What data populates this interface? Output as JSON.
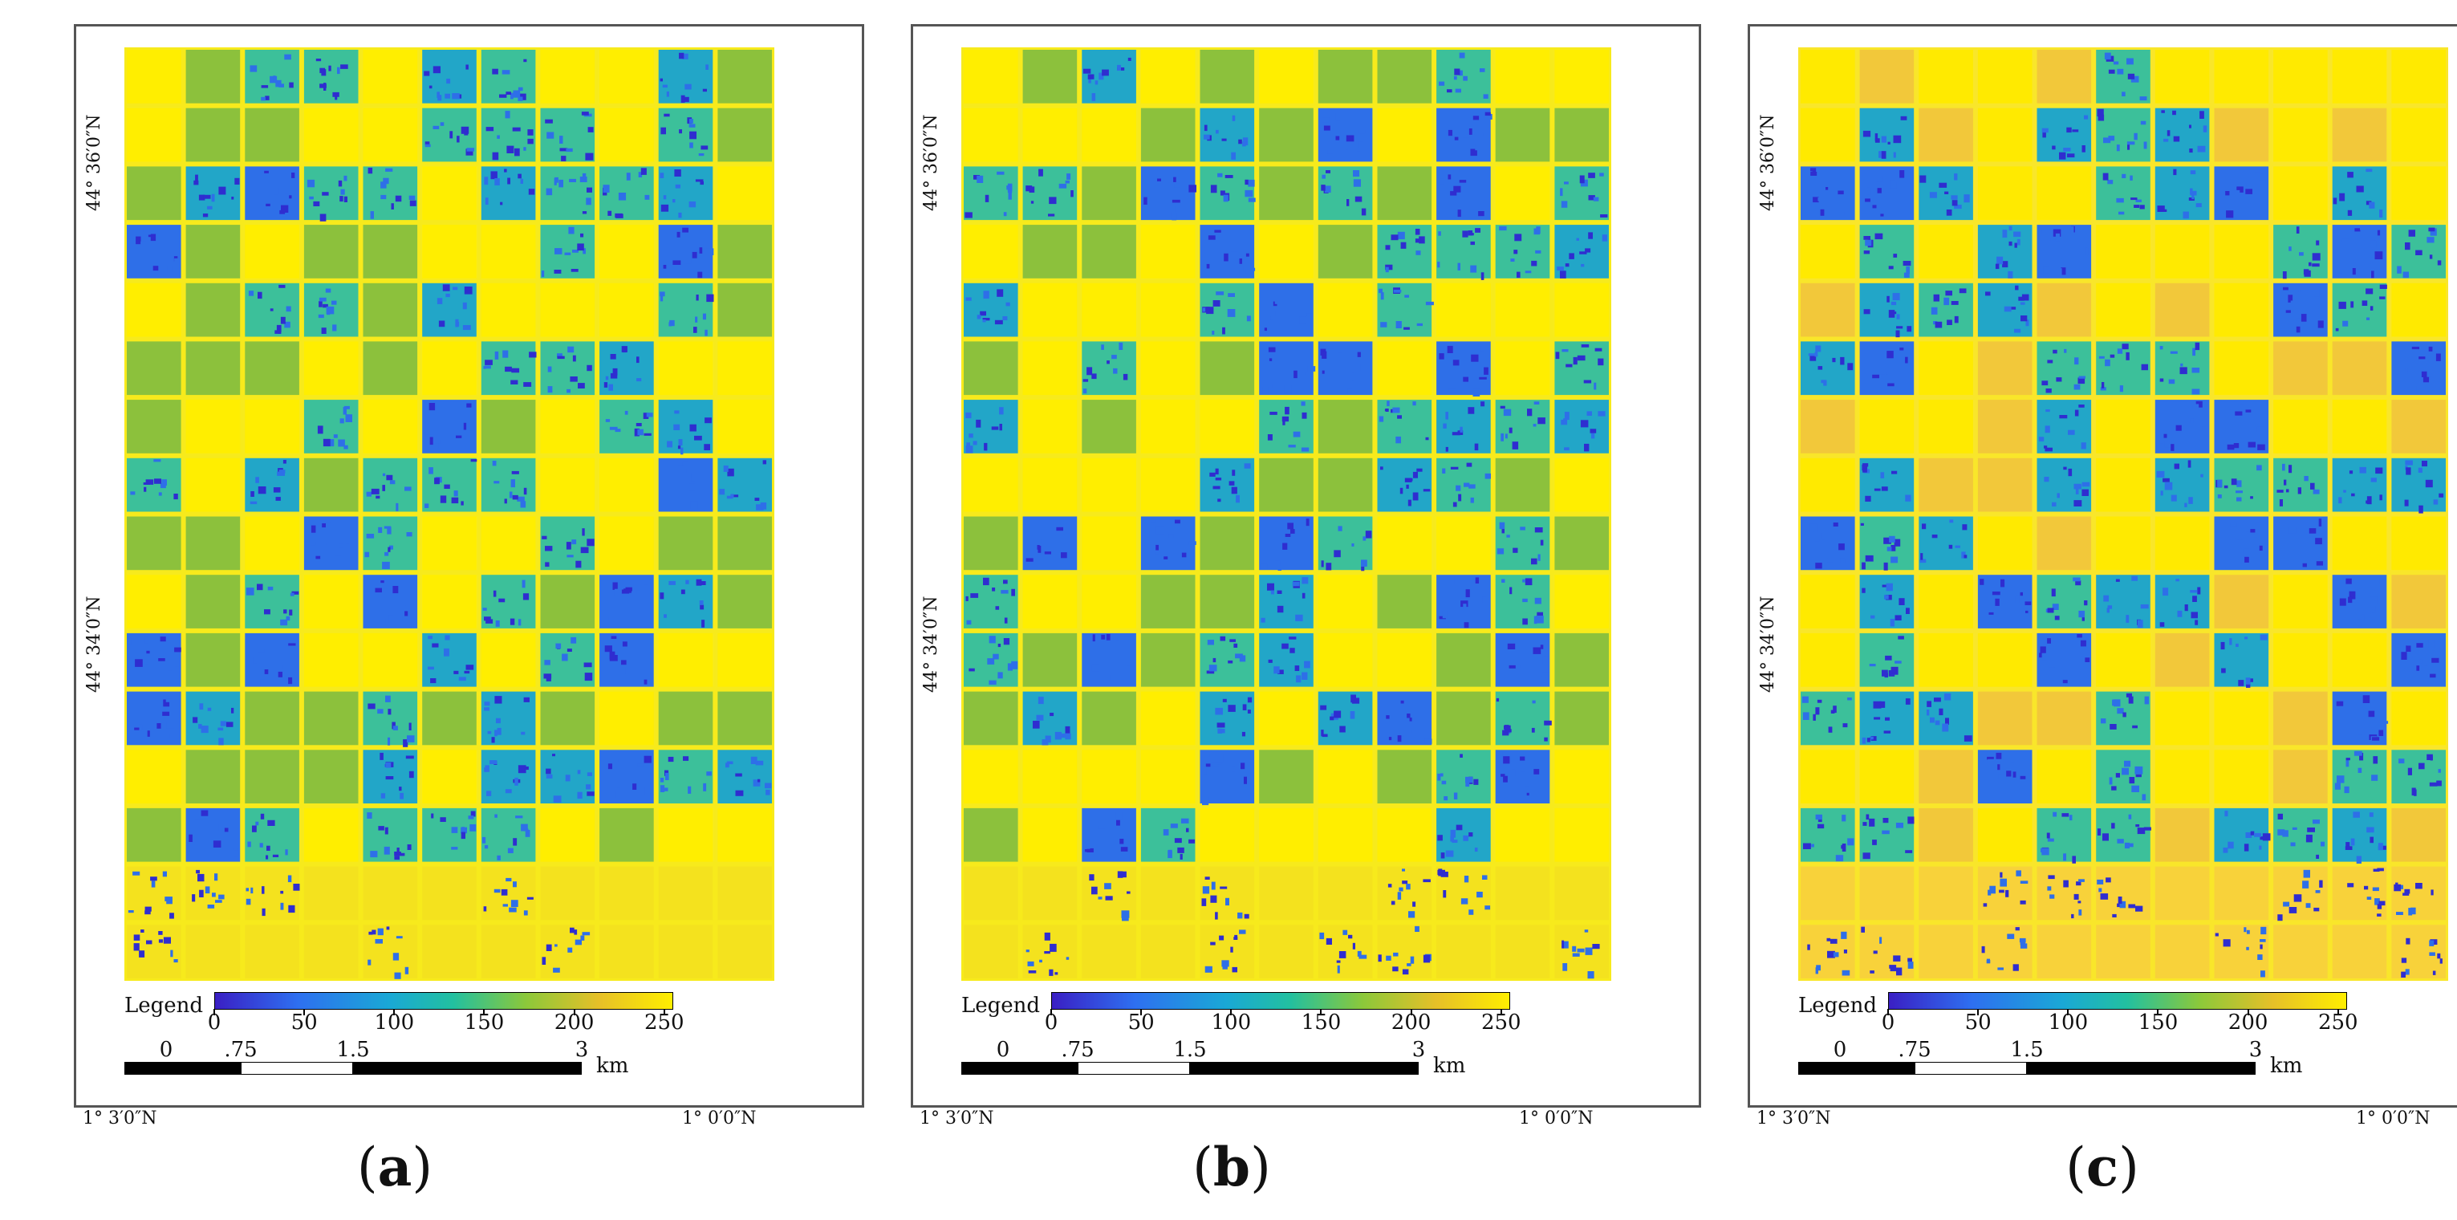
{
  "legend_title": "Legend",
  "colorbar": {
    "min": 0,
    "max": 255,
    "ticks": [
      "0",
      "50",
      "100",
      "150",
      "200",
      "250"
    ],
    "colors": [
      "#3a1fc4",
      "#2e6ff0",
      "#1aa8d6",
      "#22c0a0",
      "#8cc83a",
      "#e6c028",
      "#ffee00"
    ]
  },
  "scale_bar": {
    "labels": [
      "0",
      ".75",
      "1.5",
      "3"
    ],
    "unit": "km"
  },
  "lat_labels": [
    "44° 36′0″N",
    "44° 34′0″N"
  ],
  "lon_labels": [
    "1° 3′0″N",
    "1° 0′0″N"
  ],
  "panels": [
    {
      "id": "a",
      "caption": "(a)",
      "open": "(",
      "letter": "a",
      "close": ")"
    },
    {
      "id": "b",
      "caption": "(b)",
      "open": "(",
      "letter": "b",
      "close": ")"
    },
    {
      "id": "c",
      "caption": "(c)",
      "open": "(",
      "letter": "c",
      "close": ")"
    }
  ]
}
